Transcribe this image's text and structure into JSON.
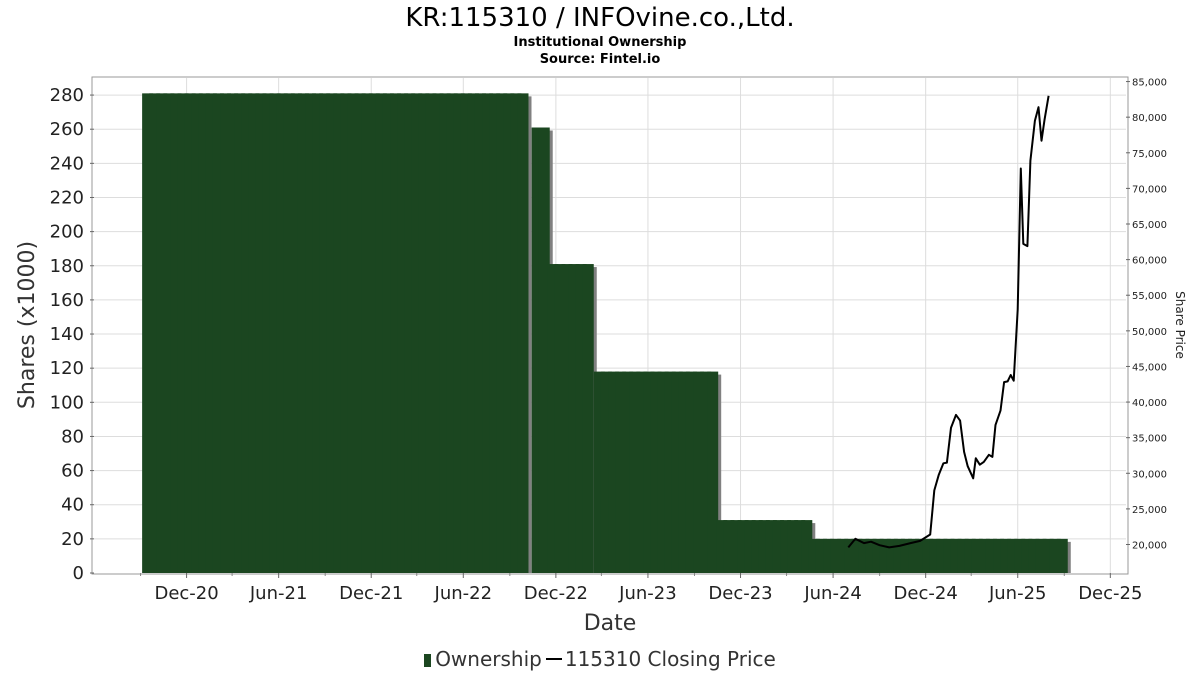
{
  "header": {
    "title": "KR:115310 / INFOvine.co.,Ltd.",
    "subtitle": "Institutional Ownership",
    "source": "Source: Fintel.io"
  },
  "legend": {
    "ownership": "Ownership",
    "price": "115310 Closing Price"
  },
  "colors": {
    "bar": "#1b4620",
    "bar_shadow": "#808080",
    "price_line": "#000000",
    "grid": "#dddddd"
  },
  "chart_data": {
    "type": "bar",
    "xlabel": "Date",
    "ylabel": "Shares (x1000)",
    "y2label": "Share Price",
    "ylim": [
      0,
      290
    ],
    "y2lim": [
      16000,
      85500
    ],
    "yticks": [
      0,
      20,
      40,
      60,
      80,
      100,
      120,
      140,
      160,
      180,
      200,
      220,
      240,
      260,
      280
    ],
    "y2ticks": [
      "20,000",
      "25,000",
      "30,000",
      "35,000",
      "40,000",
      "45,000",
      "50,000",
      "55,000",
      "60,000",
      "65,000",
      "70,000",
      "75,000",
      "80,000",
      "85,000"
    ],
    "y2tick_values": [
      20000,
      25000,
      30000,
      35000,
      40000,
      45000,
      50000,
      55000,
      60000,
      65000,
      70000,
      75000,
      80000,
      85000
    ],
    "xticks": [
      "Dec-20",
      "Jun-21",
      "Dec-21",
      "Jun-22",
      "Dec-22",
      "Jun-23",
      "Dec-23",
      "Jun-24",
      "Dec-24",
      "Jun-25",
      "Dec-25"
    ],
    "x_start": "2020-06",
    "x_end": "2026-01",
    "grid": true,
    "legend_position": "bottom",
    "series": [
      {
        "name": "Ownership",
        "type": "bar",
        "frequency": "weekly-2",
        "segments": [
          {
            "from": "2020-09-15",
            "to": "2022-10-10",
            "value": 281
          },
          {
            "from": "2022-10-25",
            "to": "2022-11-10",
            "value": 261
          },
          {
            "from": "2022-11-25",
            "to": "2023-02-10",
            "value": 181
          },
          {
            "from": "2023-02-25",
            "to": "2023-10-10",
            "value": 118
          },
          {
            "from": "2023-10-25",
            "to": "2024-04-10",
            "value": 31
          },
          {
            "from": "2024-04-25",
            "to": "2025-09-10",
            "value": 20
          }
        ]
      },
      {
        "name": "115310 Closing Price",
        "type": "line",
        "points": [
          [
            "2024-07-01",
            19600
          ],
          [
            "2024-07-15",
            20800
          ],
          [
            "2024-08-01",
            20200
          ],
          [
            "2024-08-15",
            20400
          ],
          [
            "2024-09-01",
            19900
          ],
          [
            "2024-09-20",
            19600
          ],
          [
            "2024-10-10",
            19800
          ],
          [
            "2024-11-01",
            20200
          ],
          [
            "2024-11-20",
            20500
          ],
          [
            "2024-12-10",
            21400
          ],
          [
            "2024-12-18",
            27600
          ],
          [
            "2024-12-27",
            29800
          ],
          [
            "2025-01-05",
            31400
          ],
          [
            "2025-01-12",
            31500
          ],
          [
            "2025-01-20",
            36400
          ],
          [
            "2025-01-30",
            38200
          ],
          [
            "2025-02-07",
            37400
          ],
          [
            "2025-02-15",
            33000
          ],
          [
            "2025-02-22",
            31000
          ],
          [
            "2025-03-05",
            29300
          ],
          [
            "2025-03-10",
            32100
          ],
          [
            "2025-03-18",
            31200
          ],
          [
            "2025-03-26",
            31600
          ],
          [
            "2025-04-05",
            32600
          ],
          [
            "2025-04-12",
            32300
          ],
          [
            "2025-04-18",
            36800
          ],
          [
            "2025-04-28",
            38800
          ],
          [
            "2025-05-05",
            42800
          ],
          [
            "2025-05-12",
            42900
          ],
          [
            "2025-05-18",
            43800
          ],
          [
            "2025-05-24",
            43000
          ],
          [
            "2025-06-01",
            53000
          ],
          [
            "2025-06-07",
            72800
          ],
          [
            "2025-06-12",
            62200
          ],
          [
            "2025-06-20",
            61900
          ],
          [
            "2025-06-26",
            73900
          ],
          [
            "2025-07-05",
            79500
          ],
          [
            "2025-07-12",
            81400
          ],
          [
            "2025-07-18",
            76700
          ],
          [
            "2025-07-24",
            79700
          ],
          [
            "2025-08-01",
            83000
          ]
        ]
      }
    ]
  }
}
